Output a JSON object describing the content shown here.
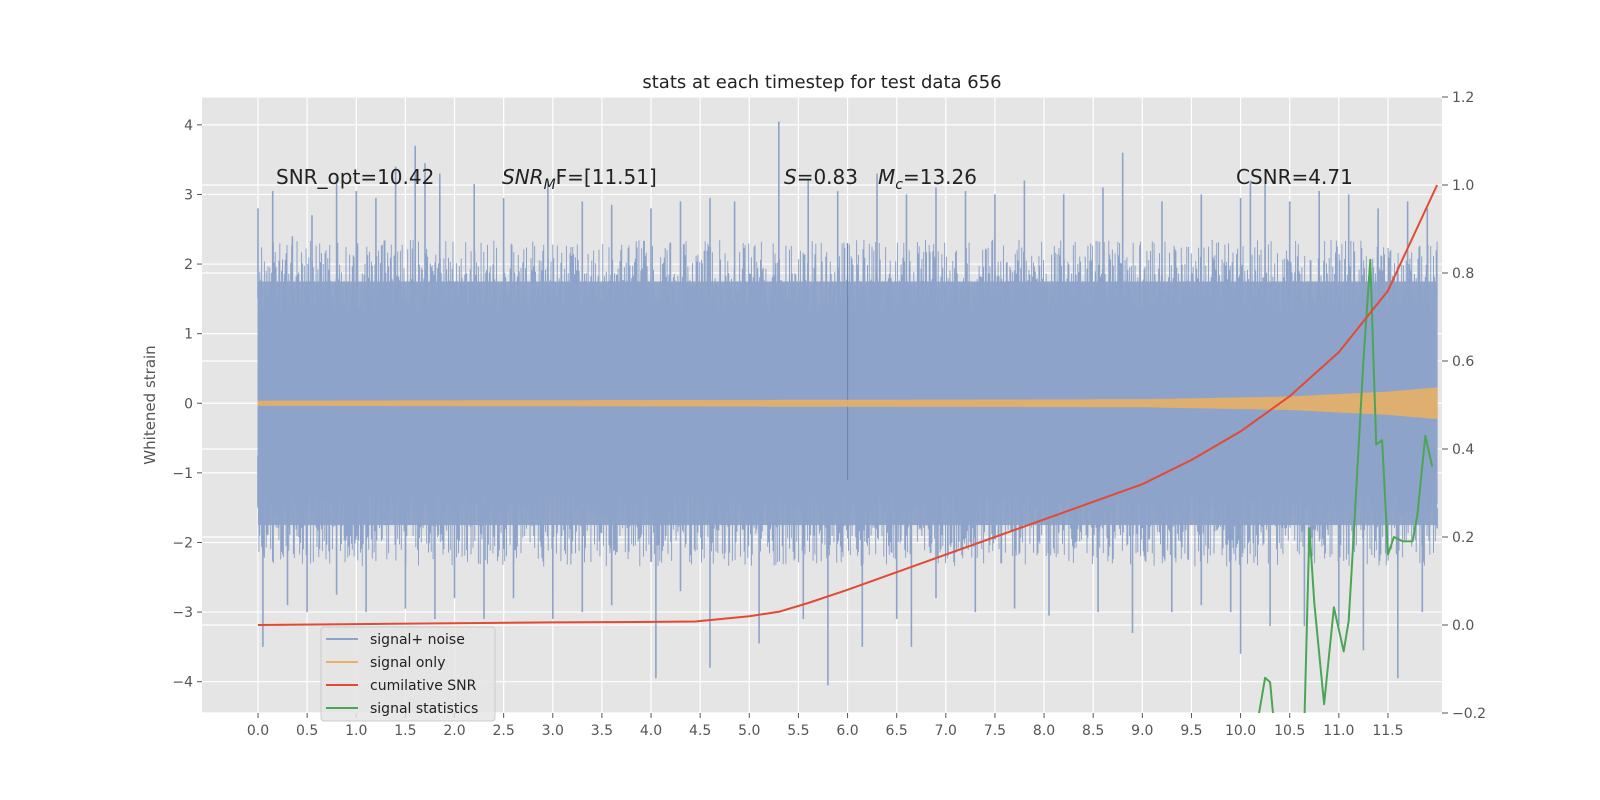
{
  "chart_data": {
    "type": "line",
    "title": "stats at each timestep for test data 656",
    "ylabel": "Whitened strain",
    "xlabel": "",
    "xlim": [
      -0.57,
      12.05
    ],
    "ylim": [
      -4.45,
      4.4
    ],
    "y2lim": [
      -0.2,
      1.2
    ],
    "x_ticks": [
      "0.0",
      "0.5",
      "1.0",
      "1.5",
      "2.0",
      "2.5",
      "3.0",
      "3.5",
      "4.0",
      "4.5",
      "5.0",
      "5.5",
      "6.0",
      "6.5",
      "7.0",
      "7.5",
      "8.0",
      "8.5",
      "9.0",
      "9.5",
      "10.0",
      "10.5",
      "11.0",
      "11.5"
    ],
    "y_ticks": [
      4,
      3,
      2,
      1,
      0,
      -1,
      -2,
      -3,
      -4
    ],
    "y_tick_labels": [
      "4",
      "3",
      "2",
      "1",
      "0",
      "−1",
      "−2",
      "−3",
      "−4"
    ],
    "y2_ticks": [
      1.2,
      1.0,
      0.8,
      0.6,
      0.4,
      0.2,
      0.0,
      -0.2
    ],
    "y2_tick_labels": [
      "1.2",
      "1.0",
      "0.8",
      "0.6",
      "0.4",
      "0.2",
      "0.0",
      "−0.2"
    ],
    "grid": true,
    "legend_position": "lower-left",
    "annotations": {
      "snr_opt": "SNR_opt=10.42",
      "snr_mf_sym": "SNR",
      "snr_mf_sub": "M",
      "snr_mf_tail": "F=[11.51]",
      "s_sym": "S",
      "s_val": "=0.83",
      "mc_sym": "M",
      "mc_sub": "c",
      "mc_val": "=13.26",
      "csnr": "CSNR=4.71"
    },
    "series": [
      {
        "name": "signal+ noise",
        "color": "#8ea3c9",
        "axis": "left",
        "x_range": [
          0.0,
          12.0
        ],
        "envelope": [
          1.9,
          -1.9
        ],
        "spikes_up": [
          [
            0.0,
            2.8
          ],
          [
            0.15,
            3.05
          ],
          [
            0.35,
            2.4
          ],
          [
            0.55,
            2.7
          ],
          [
            0.8,
            3.25
          ],
          [
            1.0,
            3.05
          ],
          [
            1.2,
            2.95
          ],
          [
            1.4,
            3.4
          ],
          [
            1.6,
            3.7
          ],
          [
            1.7,
            3.45
          ],
          [
            1.85,
            3.3
          ],
          [
            2.2,
            3.15
          ],
          [
            2.5,
            2.95
          ],
          [
            2.95,
            3.2
          ],
          [
            3.3,
            2.9
          ],
          [
            3.6,
            2.85
          ],
          [
            4.0,
            2.8
          ],
          [
            4.3,
            2.9
          ],
          [
            4.6,
            2.95
          ],
          [
            4.85,
            2.9
          ],
          [
            5.3,
            4.05
          ],
          [
            5.6,
            3.2
          ],
          [
            5.9,
            3.05
          ],
          [
            6.3,
            3.3
          ],
          [
            6.6,
            3.0
          ],
          [
            6.9,
            3.1
          ],
          [
            7.2,
            3.05
          ],
          [
            7.5,
            3.0
          ],
          [
            7.8,
            3.2
          ],
          [
            8.2,
            3.0
          ],
          [
            8.6,
            3.1
          ],
          [
            8.8,
            3.6
          ],
          [
            9.2,
            2.9
          ],
          [
            9.6,
            3.0
          ],
          [
            10.0,
            2.95
          ],
          [
            10.1,
            3.2
          ],
          [
            10.25,
            3.15
          ],
          [
            10.5,
            2.9
          ],
          [
            10.8,
            3.05
          ],
          [
            11.1,
            3.0
          ],
          [
            11.4,
            2.8
          ],
          [
            11.7,
            2.9
          ],
          [
            11.9,
            2.8
          ]
        ],
        "spikes_down": [
          [
            0.0,
            -0.75
          ],
          [
            0.05,
            -3.5
          ],
          [
            0.3,
            -2.9
          ],
          [
            0.5,
            -3.0
          ],
          [
            0.8,
            -2.75
          ],
          [
            1.1,
            -3.0
          ],
          [
            1.5,
            -2.95
          ],
          [
            1.8,
            -3.1
          ],
          [
            2.0,
            -2.8
          ],
          [
            2.3,
            -3.1
          ],
          [
            2.6,
            -2.8
          ],
          [
            3.0,
            -3.1
          ],
          [
            3.3,
            -3.0
          ],
          [
            3.6,
            -2.9
          ],
          [
            4.05,
            -3.95
          ],
          [
            4.3,
            -2.7
          ],
          [
            4.6,
            -3.8
          ],
          [
            5.1,
            -3.45
          ],
          [
            5.55,
            -3.1
          ],
          [
            5.8,
            -4.05
          ],
          [
            6.15,
            -3.5
          ],
          [
            6.5,
            -3.1
          ],
          [
            6.65,
            -3.5
          ],
          [
            6.9,
            -2.8
          ],
          [
            7.3,
            -3.0
          ],
          [
            7.7,
            -2.95
          ],
          [
            8.05,
            -3.05
          ],
          [
            8.55,
            -3.0
          ],
          [
            8.9,
            -3.3
          ],
          [
            9.3,
            -3.0
          ],
          [
            9.6,
            -2.9
          ],
          [
            9.9,
            -3.0
          ],
          [
            10.0,
            -3.6
          ],
          [
            10.3,
            -3.2
          ],
          [
            10.65,
            -3.2
          ],
          [
            11.0,
            -3.2
          ],
          [
            11.25,
            -3.55
          ],
          [
            11.6,
            -3.95
          ],
          [
            11.85,
            -3.0
          ],
          [
            12.0,
            -1.8
          ]
        ]
      },
      {
        "name": "signal only",
        "color": "#e8b166",
        "axis": "left",
        "x_range": [
          0.0,
          12.0
        ],
        "amplitude_growth": [
          [
            0.0,
            0.03
          ],
          [
            9.0,
            0.05
          ],
          [
            10.5,
            0.09
          ],
          [
            11.5,
            0.16
          ],
          [
            12.0,
            0.22
          ]
        ]
      },
      {
        "name": "cumilative SNR",
        "color": "#e24a33",
        "axis": "right",
        "x": [
          0.0,
          1.0,
          2.0,
          3.0,
          4.0,
          4.45,
          5.0,
          5.3,
          5.6,
          6.0,
          6.5,
          7.0,
          7.5,
          8.0,
          8.5,
          9.0,
          9.5,
          10.0,
          10.5,
          11.0,
          11.5,
          12.0
        ],
        "y": [
          0.0,
          0.002,
          0.004,
          0.006,
          0.007,
          0.008,
          0.02,
          0.03,
          0.05,
          0.08,
          0.12,
          0.16,
          0.2,
          0.24,
          0.28,
          0.32,
          0.375,
          0.44,
          0.52,
          0.62,
          0.76,
          1.0
        ]
      },
      {
        "name": "signal statistics",
        "color": "#4aa655",
        "axis": "right",
        "x": [
          10.15,
          10.25,
          10.3,
          10.35,
          10.65,
          10.7,
          10.75,
          10.85,
          10.95,
          11.05,
          11.1,
          11.15,
          11.25,
          11.32,
          11.38,
          11.44,
          11.5,
          11.56,
          11.65,
          11.75,
          11.8,
          11.88,
          11.95
        ],
        "y": [
          -0.25,
          -0.12,
          -0.13,
          -0.25,
          -0.22,
          0.22,
          0.05,
          -0.18,
          0.04,
          -0.06,
          0.01,
          0.2,
          0.6,
          0.83,
          0.41,
          0.42,
          0.16,
          0.2,
          0.19,
          0.19,
          0.25,
          0.43,
          0.36
        ]
      }
    ]
  }
}
